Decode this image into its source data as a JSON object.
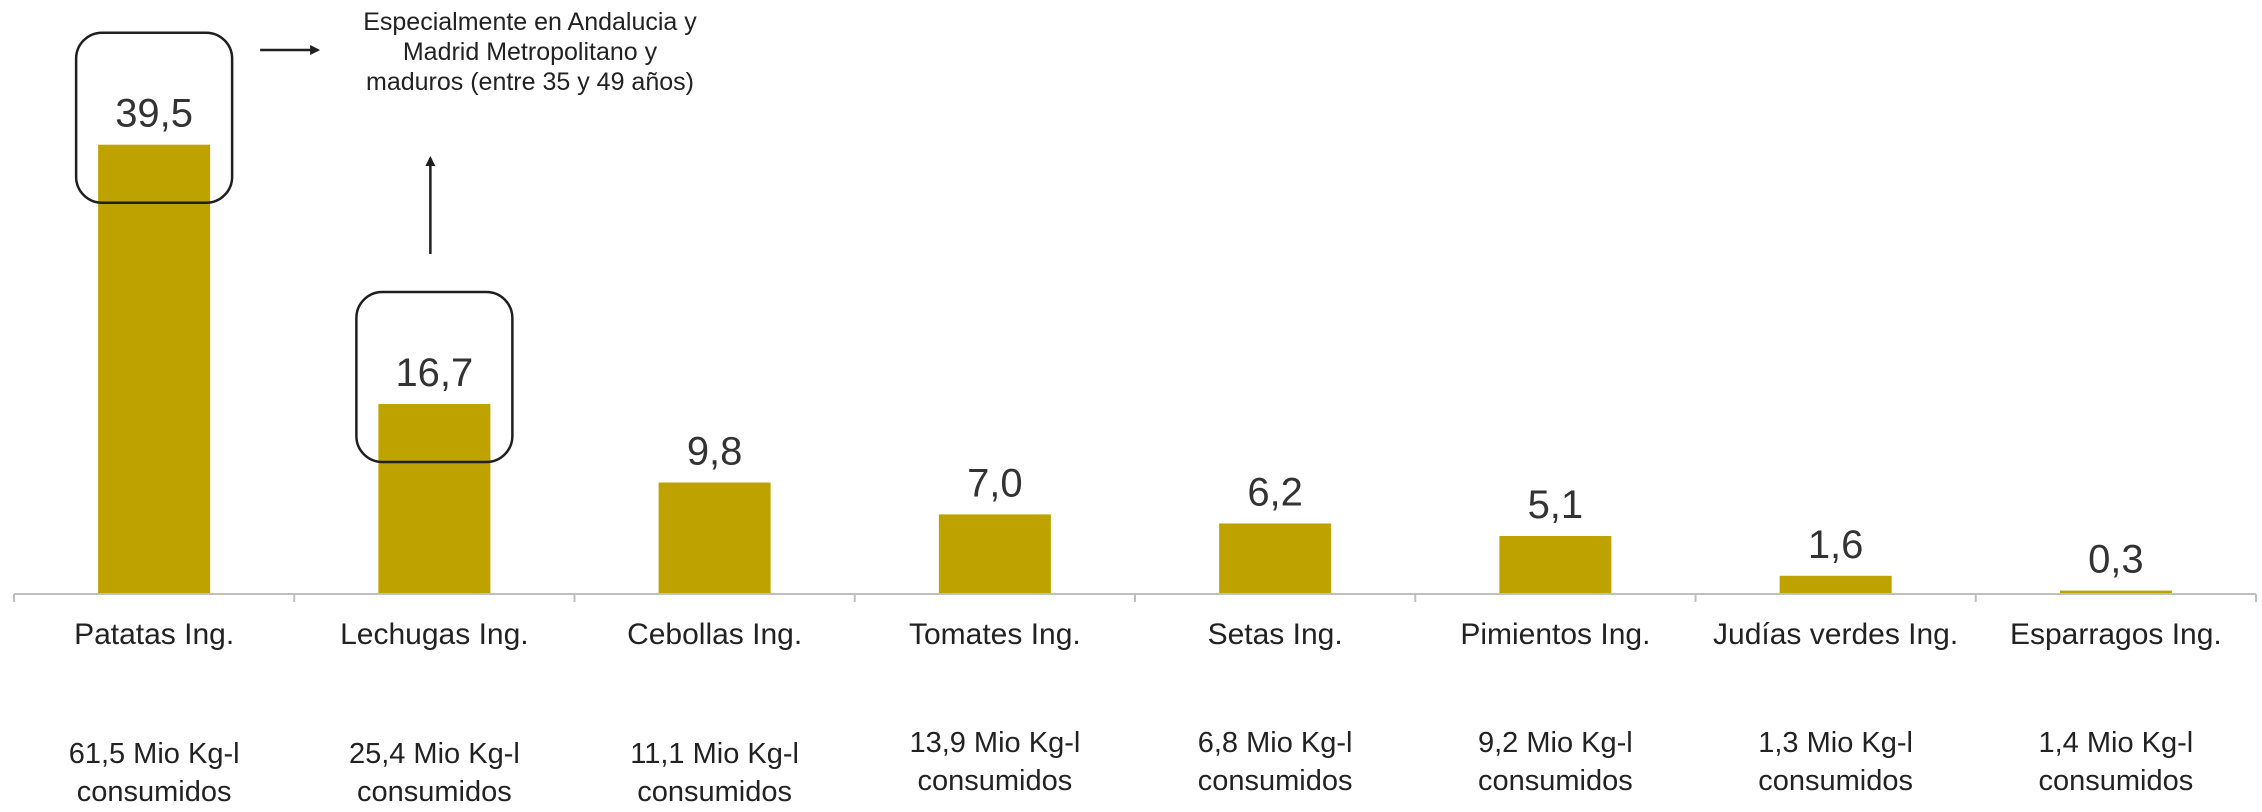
{
  "colors": {
    "bar": "#BDA200",
    "axis": "#BFBFBF",
    "text": "#222222",
    "callout_border": "#1F1F1F",
    "arrow": "#1F1F1F"
  },
  "chart_data": {
    "type": "bar",
    "categories": [
      "Patatas Ing.",
      "Lechugas Ing.",
      "Cebollas Ing.",
      "Tomates Ing.",
      "Setas Ing.",
      "Pimientos Ing.",
      "Judías verdes Ing.",
      "Esparragos Ing."
    ],
    "values": [
      39.5,
      16.7,
      9.8,
      7.0,
      6.2,
      5.1,
      1.6,
      0.3
    ],
    "value_labels": [
      "39,5",
      "16,7",
      "9,8",
      "7,0",
      "6,2",
      "5,1",
      "1,6",
      "0,3"
    ],
    "consumption_labels": [
      [
        "61,5 Mio Kg-l",
        "consumidos"
      ],
      [
        "25,4 Mio Kg-l",
        "consumidos"
      ],
      [
        "11,1 Mio Kg-l",
        "consumidos"
      ],
      [
        "13,9 Mio Kg-l",
        "consumidos"
      ],
      [
        "6,8 Mio Kg-l",
        "consumidos"
      ],
      [
        "9,2 Mio Kg-l",
        "consumidos"
      ],
      [
        "1,3 Mio Kg-l",
        "consumidos"
      ],
      [
        "1,4 Mio Kg-l",
        "consumidos"
      ]
    ],
    "ylim": [
      0,
      40
    ],
    "grid": false,
    "legend": "none",
    "title": "",
    "xlabel": "",
    "ylabel": "",
    "highlighted_categories": [
      "Patatas Ing.",
      "Lechugas Ing."
    ],
    "annotation": {
      "lines": [
        "Especialmente en Andalucia y",
        "Madrid Metropolitano y",
        "maduros (entre 35 y 49 años)"
      ]
    }
  }
}
